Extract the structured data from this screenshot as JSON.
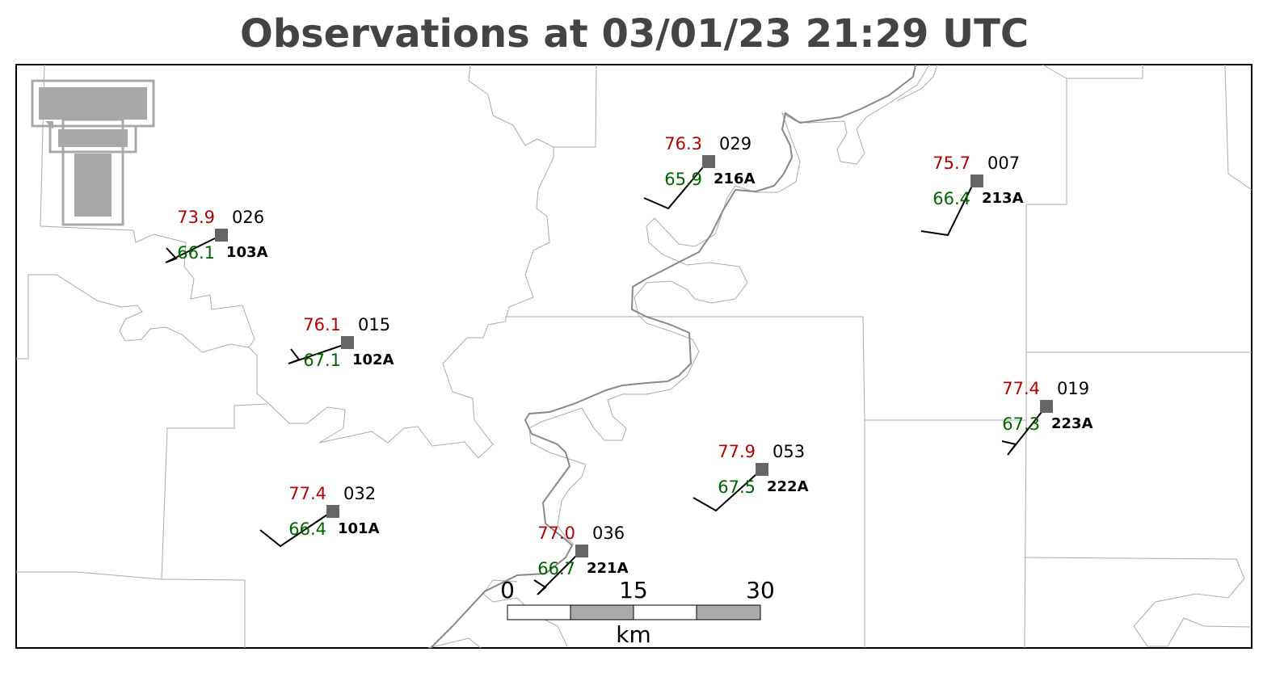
{
  "title": "Observations at 03/01/23 21:29 UTC",
  "stations": [
    {
      "id": "103A",
      "temperature": "73.9",
      "dewpoint": "66.1",
      "pressure": "026"
    },
    {
      "id": "102A",
      "temperature": "76.1",
      "dewpoint": "67.1",
      "pressure": "015"
    },
    {
      "id": "101A",
      "temperature": "77.4",
      "dewpoint": "66.4",
      "pressure": "032"
    },
    {
      "id": "221A",
      "temperature": "77.0",
      "dewpoint": "66.7",
      "pressure": "036"
    },
    {
      "id": "216A",
      "temperature": "76.3",
      "dewpoint": "65.9",
      "pressure": "029"
    },
    {
      "id": "222A",
      "temperature": "77.9",
      "dewpoint": "67.5",
      "pressure": "053"
    },
    {
      "id": "213A",
      "temperature": "75.7",
      "dewpoint": "66.4",
      "pressure": "007"
    },
    {
      "id": "223A",
      "temperature": "77.4",
      "dewpoint": "67.3",
      "pressure": "019"
    }
  ],
  "scale_bar": {
    "ticks": [
      "0",
      "15",
      "30"
    ],
    "unit": "km"
  }
}
